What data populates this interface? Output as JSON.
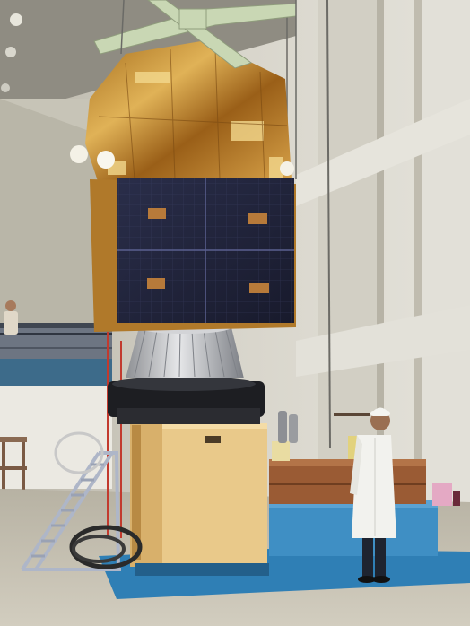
{
  "photo": {
    "subject": "satellite",
    "colors": {
      "wall": "#dcdad0",
      "wall_shadow": "#bdb8aa",
      "ceiling": "#8d8a80",
      "floor": "#c4bfb1",
      "gold_foil": "#c08a2e",
      "gold_highlight": "#f0cf7a",
      "solar_panel": "#22253c",
      "panel_grid": "#3a3e5c",
      "cradle": "#e9c98a",
      "platform_blue": "#3f8fc4",
      "ladder": "#aeb6c8",
      "lab_coat": "#f2f2ee",
      "crane": "#c9d7b4"
    }
  }
}
